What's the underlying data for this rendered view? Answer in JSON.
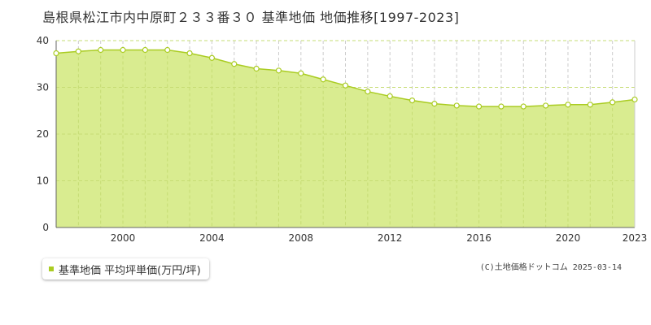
{
  "header": {
    "title": "島根県松江市内中原町２３３番３０ 基準地価 地価推移[1997-2023]"
  },
  "legend": {
    "label": "基準地価 平均坪単価(万円/坪)",
    "color": "#aacc22"
  },
  "footer": {
    "copyright": "(C)土地価格ドットコム 2025-03-14"
  },
  "colors": {
    "area_fill": "#d9ec90",
    "line": "#aacc22",
    "grid": "#cccccc"
  },
  "chart_data": {
    "type": "area",
    "title": "島根県松江市内中原町２３３番３０ 基準地価 地価推移[1997-2023]",
    "xlabel": "",
    "ylabel": "",
    "xlim": [
      1997,
      2023
    ],
    "ylim": [
      0,
      40
    ],
    "y_ticks": [
      0,
      10,
      20,
      30,
      40
    ],
    "x_ticks": [
      2000,
      2004,
      2008,
      2012,
      2016,
      2020,
      2023
    ],
    "grid": true,
    "legend_position": "bottom-left",
    "series": [
      {
        "name": "基準地価 平均坪単価(万円/坪)",
        "x": [
          1997,
          1998,
          1999,
          2000,
          2001,
          2002,
          2003,
          2004,
          2005,
          2006,
          2007,
          2008,
          2009,
          2010,
          2011,
          2012,
          2013,
          2014,
          2015,
          2016,
          2017,
          2018,
          2019,
          2020,
          2021,
          2022,
          2023
        ],
        "values": [
          37.3,
          37.7,
          38.0,
          38.0,
          38.0,
          38.0,
          37.3,
          36.3,
          35.0,
          34.0,
          33.6,
          33.0,
          31.7,
          30.4,
          29.1,
          28.1,
          27.2,
          26.5,
          26.1,
          25.9,
          25.9,
          25.9,
          26.1,
          26.3,
          26.3,
          26.8,
          27.4
        ]
      }
    ]
  }
}
